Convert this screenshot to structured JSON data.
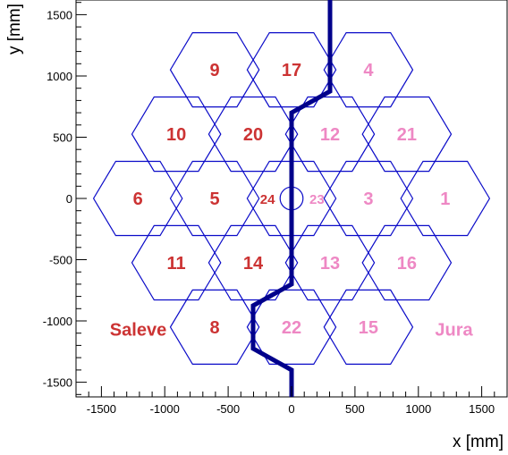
{
  "chart_data": {
    "type": "scatter",
    "xlabel": "x [mm]",
    "ylabel": "y [mm]",
    "xlim": [
      -1700,
      1700
    ],
    "ylim": [
      -1620,
      1620
    ],
    "xticks": [
      -1500,
      -1000,
      -500,
      0,
      500,
      1000,
      1500
    ],
    "yticks": [
      -1500,
      -1000,
      -500,
      0,
      500,
      1000,
      1500
    ],
    "hex_radius": 350,
    "hexagons": [
      {
        "label": "9",
        "x": -606,
        "y": 1050,
        "side": "Saleve"
      },
      {
        "label": "17",
        "x": 0,
        "y": 1050,
        "side": "Saleve"
      },
      {
        "label": "4",
        "x": 606,
        "y": 1050,
        "side": "Jura"
      },
      {
        "label": "10",
        "x": -909,
        "y": 525,
        "side": "Saleve"
      },
      {
        "label": "20",
        "x": -303,
        "y": 525,
        "side": "Saleve"
      },
      {
        "label": "12",
        "x": 303,
        "y": 525,
        "side": "Jura"
      },
      {
        "label": "21",
        "x": 909,
        "y": 525,
        "side": "Jura"
      },
      {
        "label": "6",
        "x": -1212,
        "y": 0,
        "side": "Saleve"
      },
      {
        "label": "5",
        "x": -606,
        "y": 0,
        "side": "Saleve"
      },
      {
        "label": "3",
        "x": 606,
        "y": 0,
        "side": "Jura"
      },
      {
        "label": "1",
        "x": 1212,
        "y": 0,
        "side": "Jura"
      },
      {
        "label": "11",
        "x": -909,
        "y": -525,
        "side": "Saleve"
      },
      {
        "label": "14",
        "x": -303,
        "y": -525,
        "side": "Saleve"
      },
      {
        "label": "13",
        "x": 303,
        "y": -525,
        "side": "Jura"
      },
      {
        "label": "16",
        "x": 909,
        "y": -525,
        "side": "Jura"
      },
      {
        "label": "8",
        "x": -606,
        "y": -1050,
        "side": "Saleve"
      },
      {
        "label": "22",
        "x": 0,
        "y": -1050,
        "side": "Jura"
      },
      {
        "label": "15",
        "x": 606,
        "y": -1050,
        "side": "Jura"
      }
    ],
    "center_hexagon": {
      "x": 0,
      "y": 0
    },
    "center_labels": [
      {
        "label": "24",
        "x": -190,
        "y": 0,
        "side": "Saleve"
      },
      {
        "label": "23",
        "x": 200,
        "y": 0,
        "side": "Jura"
      }
    ],
    "center_circle": {
      "x": 0,
      "y": 0,
      "r": 90
    },
    "divider_line": [
      [
        0,
        -1620
      ],
      [
        0,
        -1400
      ],
      [
        -303,
        -1225
      ],
      [
        -303,
        -875
      ],
      [
        0,
        -700
      ],
      [
        0,
        700
      ],
      [
        303,
        875
      ],
      [
        303,
        1225
      ],
      [
        303,
        1620
      ]
    ],
    "region_labels": [
      {
        "label": "Saleve",
        "x": -1210,
        "y": -1070,
        "side": "Saleve"
      },
      {
        "label": "Jura",
        "x": 1280,
        "y": -1070,
        "side": "Jura"
      }
    ],
    "colors": {
      "hex_outline": "#0a0ac8",
      "divider": "#00008b",
      "saleve": "#cc3333",
      "jura": "#ee88c4",
      "axis": "#000000"
    }
  }
}
